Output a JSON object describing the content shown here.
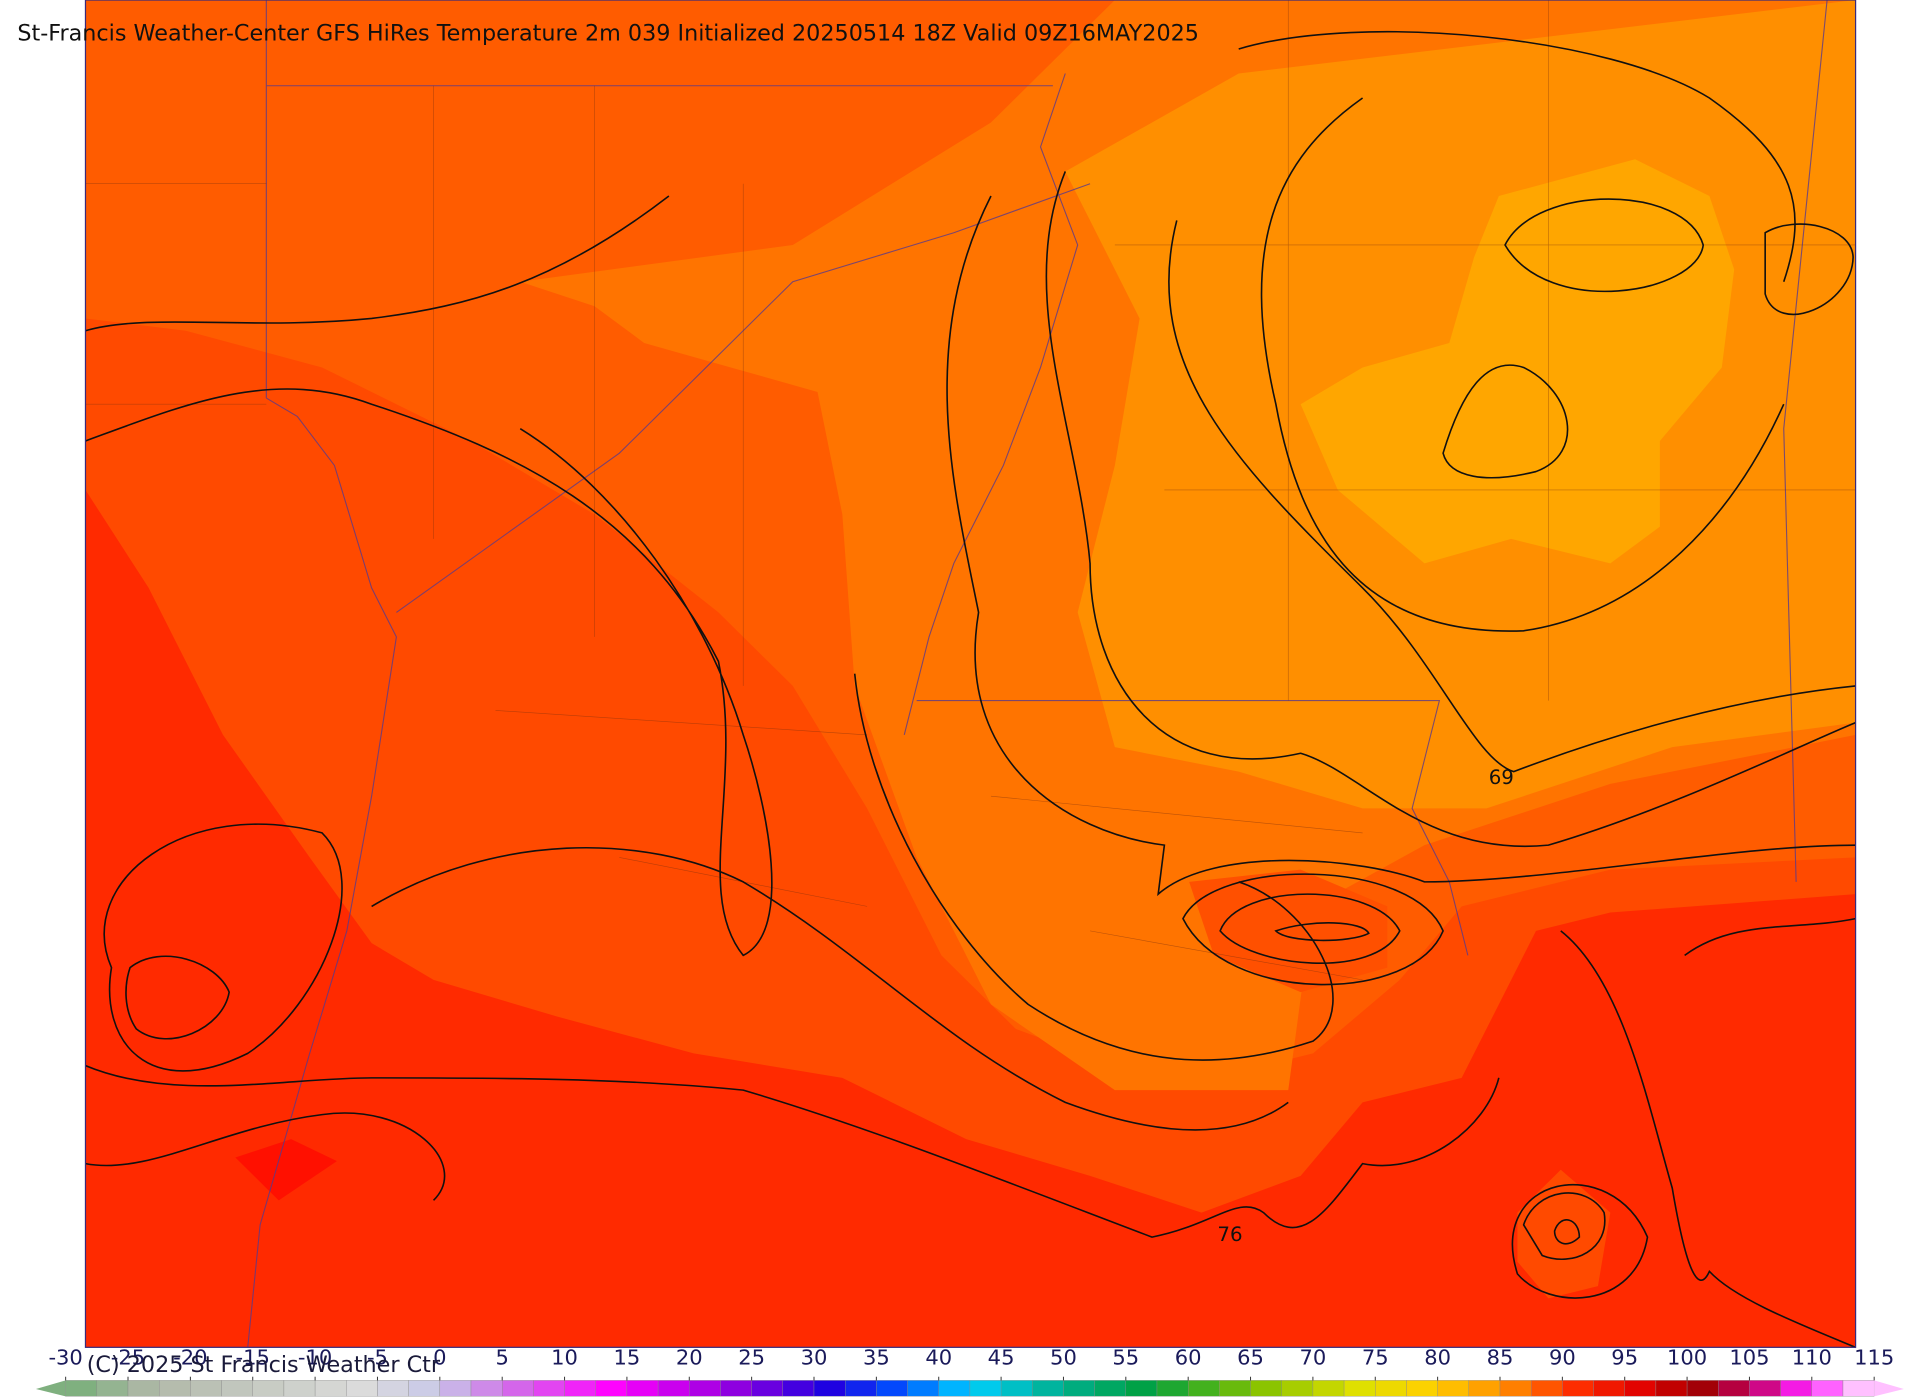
{
  "header": {
    "title": "St-Francis Weather-Center GFS HiRes Temperature 2m  039 Initialized 20250514 18Z Valid 09Z16MAY2025"
  },
  "map": {
    "contour_labels": [
      "69",
      "76"
    ]
  },
  "colorbar": {
    "ticks": [
      -30,
      -25,
      -20,
      -15,
      -10,
      -5,
      0,
      5,
      10,
      15,
      20,
      25,
      30,
      35,
      40,
      45,
      50,
      55,
      60,
      65,
      70,
      75,
      80,
      85,
      90,
      95,
      100,
      105,
      110,
      115
    ]
  },
  "footer": {
    "copyright": "(C) 2025 St Francis Weather Ctr"
  }
}
